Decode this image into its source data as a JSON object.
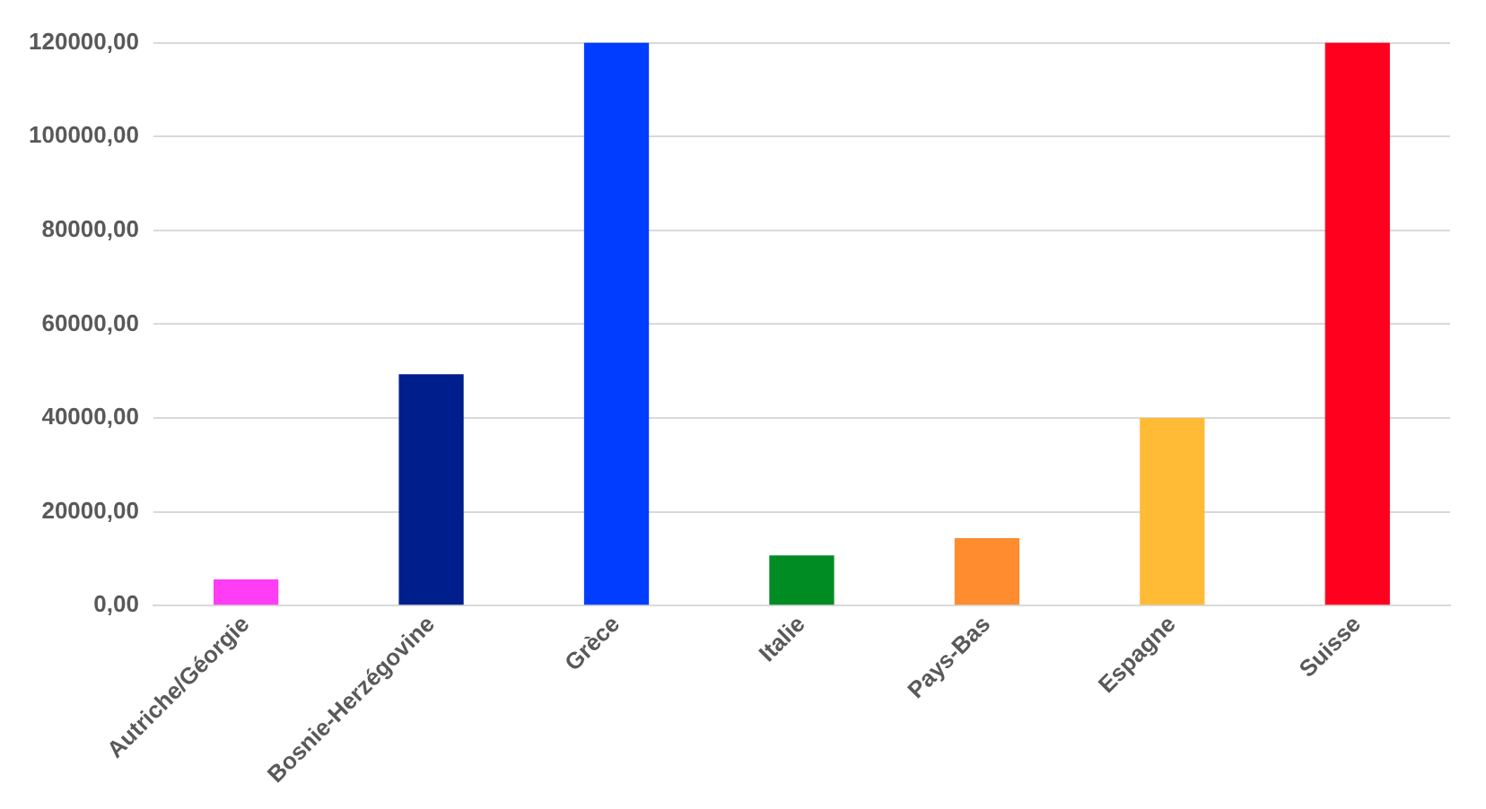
{
  "chart_data": {
    "type": "bar",
    "categories": [
      "Autriche/Géorgie",
      "Bosnie-Herzégovine",
      "Grèce",
      "Italie",
      "Pays-Bas",
      "Espagne",
      "Suisse"
    ],
    "values": [
      5600,
      49300,
      120000,
      10700,
      14400,
      40000,
      120000
    ],
    "colors": [
      "#ff3df5",
      "#001f8c",
      "#003dff",
      "#008c23",
      "#ff8c2e",
      "#ffbb36",
      "#ff001e"
    ],
    "ylim": [
      0,
      120000
    ],
    "yticks": [
      {
        "value": 0,
        "label": "0,00"
      },
      {
        "value": 20000,
        "label": "20000,00"
      },
      {
        "value": 40000,
        "label": "40000,00"
      },
      {
        "value": 60000,
        "label": "60000,00"
      },
      {
        "value": 80000,
        "label": "80000,00"
      },
      {
        "value": 100000,
        "label": "100000,00"
      },
      {
        "value": 120000,
        "label": "120000,00"
      }
    ],
    "grid": "y",
    "legend": false
  }
}
